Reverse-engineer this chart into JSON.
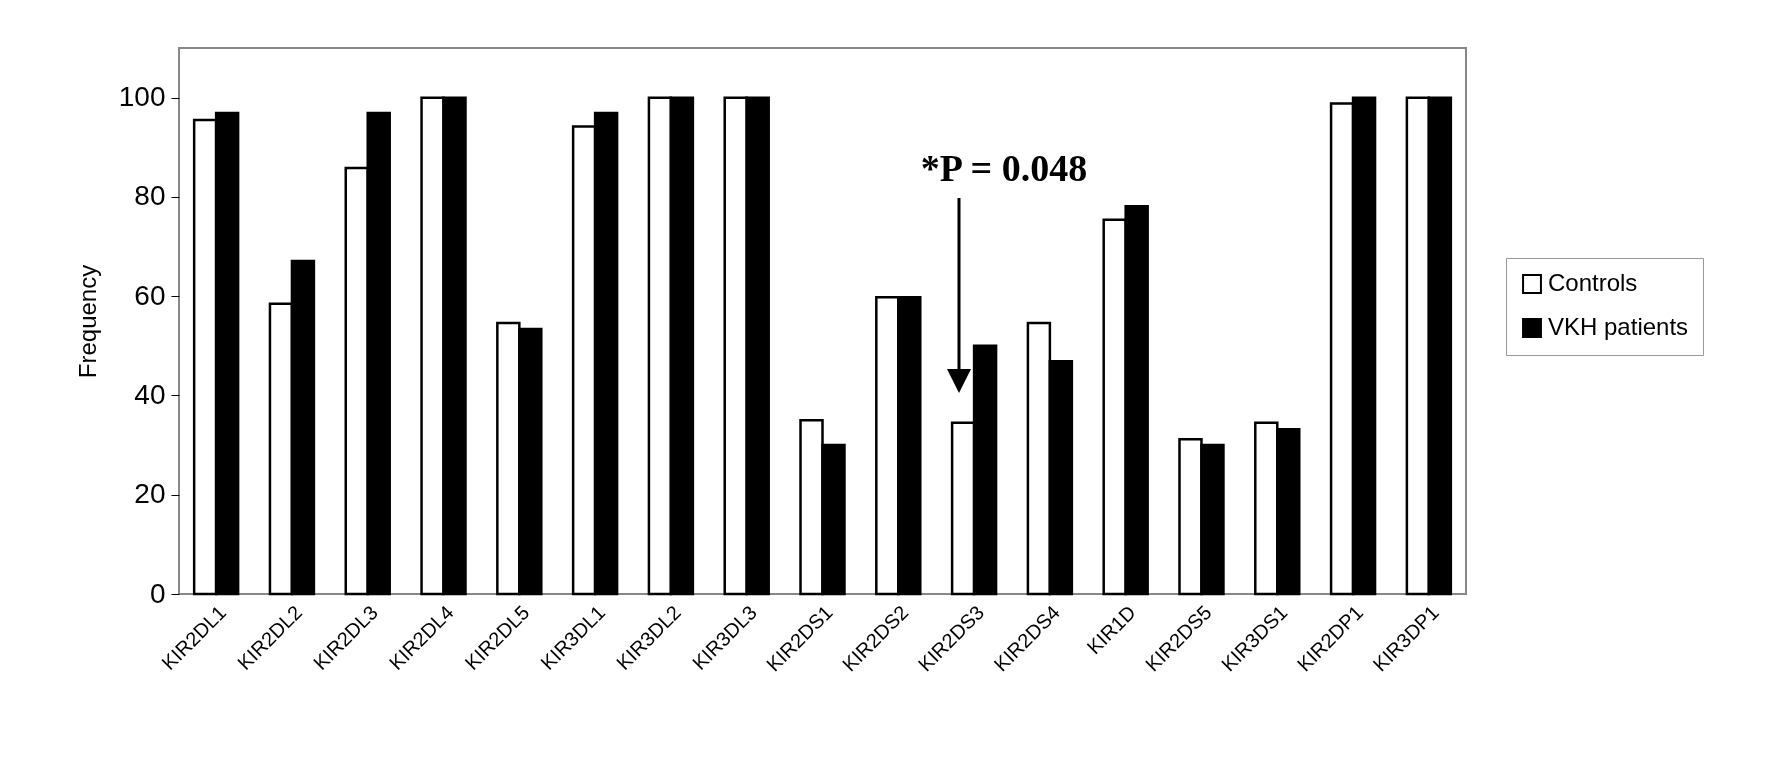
{
  "chart_data": {
    "type": "bar",
    "ylabel": "Frequency",
    "categories": [
      "KIR2DL1",
      "KIR2DL2",
      "KIR2DL3",
      "KIR2DL4",
      "KIR2DL5",
      "KIR3DL1",
      "KIR3DL2",
      "KIR3DL3",
      "KIR2DS1",
      "KIR2DS2",
      "KIR2DS3",
      "KIR2DS4",
      "KIR1D",
      "KIR2DS5",
      "KIR3DS1",
      "KIR2DP1",
      "KIR3DP1"
    ],
    "series": [
      {
        "name": "Controls",
        "color": "#ffffff",
        "values": [
          95.5,
          58.5,
          85.8,
          100,
          54.6,
          94.2,
          100,
          100,
          35,
          59.8,
          34.5,
          54.6,
          75.4,
          31.2,
          34.5,
          98.8,
          100
        ]
      },
      {
        "name": "VKH patients",
        "color": "#000000",
        "values": [
          96.9,
          67.1,
          96.9,
          100,
          53.4,
          96.9,
          100,
          100,
          30,
          59.8,
          50,
          46.9,
          78.1,
          30,
          33.2,
          100,
          100
        ]
      }
    ],
    "ylim": [
      0,
      110
    ],
    "yticks": [
      0,
      20,
      40,
      60,
      80,
      100
    ],
    "grid": false,
    "legend": "right",
    "annotations": [
      "*P = 0.048"
    ]
  }
}
